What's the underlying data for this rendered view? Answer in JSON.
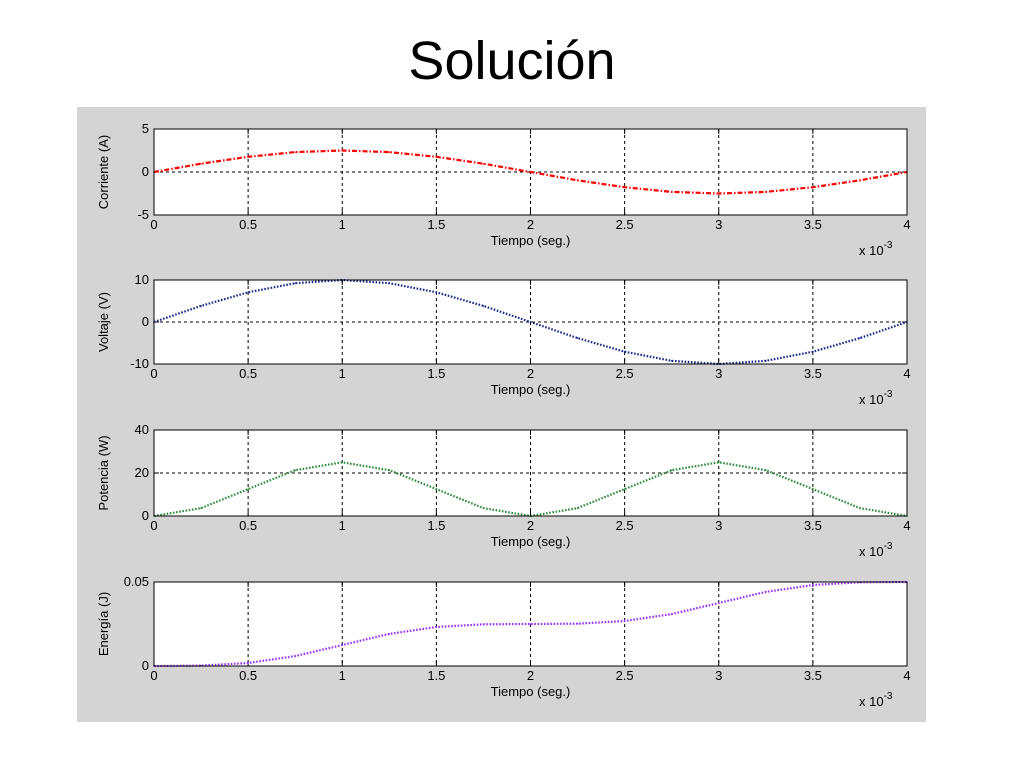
{
  "slide": {
    "title": "Solución"
  },
  "figure": {
    "background": "#d4d4d4",
    "axes_background": "#ffffff"
  },
  "chart_data": [
    {
      "type": "line",
      "xlabel": "Tiempo (seg.)",
      "ylabel": "Corriente (A)",
      "x_multiplier": {
        "base": "x 10",
        "exp": "-3"
      },
      "xlim": [
        0,
        4
      ],
      "ylim": [
        -5,
        5
      ],
      "xticks": [
        "0",
        "0.5",
        "1",
        "1.5",
        "2",
        "2.5",
        "3",
        "3.5",
        "4"
      ],
      "yticks": [
        {
          "v": 5,
          "label": "5"
        },
        {
          "v": 0,
          "label": "0"
        },
        {
          "v": -5,
          "label": "-5"
        }
      ],
      "grid": true,
      "series": [
        {
          "color": "#ff0000",
          "dash": "5 2 1.5 2",
          "x": [
            0,
            0.25,
            0.5,
            0.75,
            1.0,
            1.25,
            1.5,
            1.75,
            2.0,
            2.25,
            2.5,
            2.75,
            3.0,
            3.25,
            3.5,
            3.75,
            4.0
          ],
          "y": [
            0,
            0.96,
            1.77,
            2.31,
            2.5,
            2.31,
            1.77,
            0.96,
            0,
            -0.96,
            -1.77,
            -2.31,
            -2.5,
            -2.31,
            -1.77,
            -0.96,
            0
          ]
        }
      ]
    },
    {
      "type": "line",
      "xlabel": "Tiempo (seg.)",
      "ylabel": "Voltaje (V)",
      "x_multiplier": {
        "base": "x 10",
        "exp": "-3"
      },
      "xlim": [
        0,
        4
      ],
      "ylim": [
        -10,
        10
      ],
      "xticks": [
        "0",
        "0.5",
        "1",
        "1.5",
        "2",
        "2.5",
        "3",
        "3.5",
        "4"
      ],
      "yticks": [
        {
          "v": 10,
          "label": "10"
        },
        {
          "v": 0,
          "label": "0"
        },
        {
          "v": -10,
          "label": "-10"
        }
      ],
      "grid": true,
      "series": [
        {
          "color": "#1a2a8c",
          "dash": "1.6 1.6",
          "x": [
            0,
            0.25,
            0.5,
            0.75,
            1.0,
            1.25,
            1.5,
            1.75,
            2.0,
            2.25,
            2.5,
            2.75,
            3.0,
            3.25,
            3.5,
            3.75,
            4.0
          ],
          "y": [
            0,
            3.83,
            7.07,
            9.24,
            10,
            9.24,
            7.07,
            3.83,
            0,
            -3.83,
            -7.07,
            -9.24,
            -10,
            -9.24,
            -7.07,
            -3.83,
            0
          ]
        }
      ]
    },
    {
      "type": "line",
      "xlabel": "Tiempo (seg.)",
      "ylabel": "Potencia (W)",
      "x_multiplier": {
        "base": "x 10",
        "exp": "-3"
      },
      "xlim": [
        0,
        4
      ],
      "ylim": [
        0,
        40
      ],
      "xticks": [
        "0",
        "0.5",
        "1",
        "1.5",
        "2",
        "2.5",
        "3",
        "3.5",
        "4"
      ],
      "yticks": [
        {
          "v": 40,
          "label": "40"
        },
        {
          "v": 20,
          "label": "20"
        },
        {
          "v": 0,
          "label": "0"
        }
      ],
      "grid": true,
      "series": [
        {
          "color": "#2e8b3c",
          "dash": "1.6 1.6",
          "x": [
            0,
            0.25,
            0.5,
            0.75,
            1.0,
            1.25,
            1.5,
            1.75,
            2.0,
            2.25,
            2.5,
            2.75,
            3.0,
            3.25,
            3.5,
            3.75,
            4.0
          ],
          "y": [
            0,
            3.66,
            12.5,
            21.3,
            25,
            21.3,
            12.5,
            3.66,
            0,
            3.66,
            12.5,
            21.3,
            25,
            21.3,
            12.5,
            3.66,
            0
          ]
        }
      ]
    },
    {
      "type": "line",
      "xlabel": "Tiempo (seg.)",
      "ylabel": "Energía (J)",
      "x_multiplier": {
        "base": "x 10",
        "exp": "-3"
      },
      "xlim": [
        0,
        4
      ],
      "ylim": [
        0,
        0.05
      ],
      "xticks": [
        "0",
        "0.5",
        "1",
        "1.5",
        "2",
        "2.5",
        "3",
        "3.5",
        "4"
      ],
      "yticks": [
        {
          "v": 0.05,
          "label": "0.05"
        },
        {
          "v": 0,
          "label": "0"
        }
      ],
      "grid": true,
      "series": [
        {
          "color": "#9b30ff",
          "dash": "1.6 1.6",
          "x": [
            0,
            0.25,
            0.5,
            0.75,
            1.0,
            1.25,
            1.5,
            1.75,
            2.0,
            2.25,
            2.5,
            2.75,
            3.0,
            3.25,
            3.5,
            3.75,
            4.0
          ],
          "y": [
            0,
            0.00025,
            0.0018,
            0.0059,
            0.0125,
            0.0191,
            0.0232,
            0.0248,
            0.025,
            0.0252,
            0.0268,
            0.0309,
            0.0375,
            0.0441,
            0.0482,
            0.0498,
            0.05
          ]
        }
      ]
    }
  ]
}
